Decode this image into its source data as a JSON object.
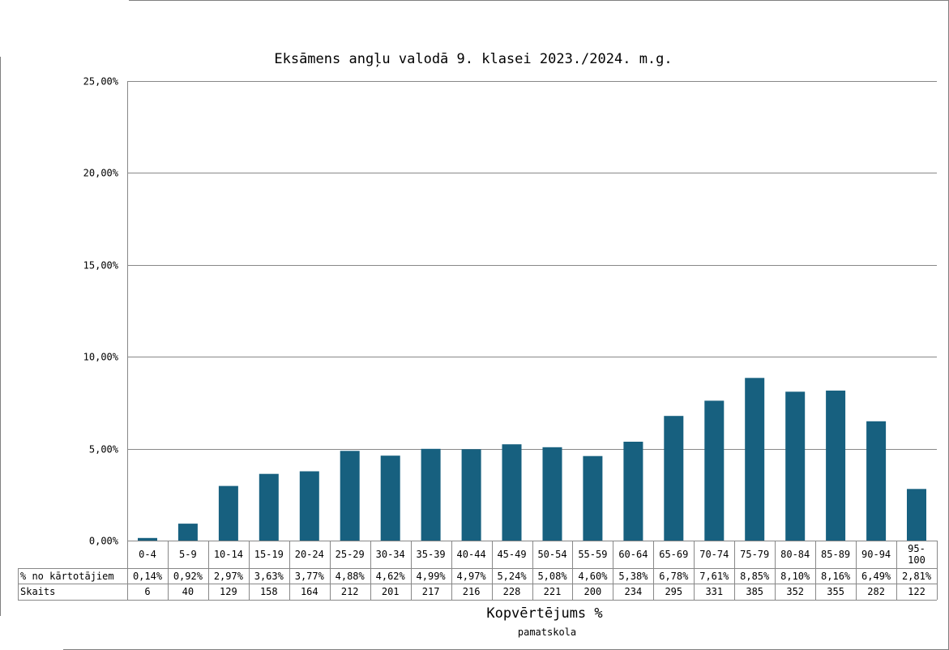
{
  "chart_data": {
    "type": "bar",
    "title": "Eksāmens angļu valodā 9. klasei 2023./2024. m.g.",
    "xlabel": "Kopvērtējums %",
    "subtitle": "pamatskola",
    "ylim": [
      0,
      25
    ],
    "yticks": [
      0,
      5,
      10,
      15,
      20,
      25
    ],
    "ytick_labels": [
      "0,00%",
      "5,00%",
      "10,00%",
      "15,00%",
      "20,00%",
      "25,00%"
    ],
    "grid": true,
    "bar_color": "#17607f",
    "categories": [
      "0-4",
      "5-9",
      "10-14",
      "15-19",
      "20-24",
      "25-29",
      "30-34",
      "35-39",
      "40-44",
      "45-49",
      "50-54",
      "55-59",
      "60-64",
      "65-69",
      "70-74",
      "75-79",
      "80-84",
      "85-89",
      "90-94",
      "95-100"
    ],
    "category_lines": [
      [
        "0-4"
      ],
      [
        "5-9"
      ],
      [
        "10-14"
      ],
      [
        "15-19"
      ],
      [
        "20-24"
      ],
      [
        "25-29"
      ],
      [
        "30-34"
      ],
      [
        "35-39"
      ],
      [
        "40-44"
      ],
      [
        "45-49"
      ],
      [
        "50-54"
      ],
      [
        "55-59"
      ],
      [
        "60-64"
      ],
      [
        "65-69"
      ],
      [
        "70-74"
      ],
      [
        "75-79"
      ],
      [
        "80-84"
      ],
      [
        "85-89"
      ],
      [
        "90-94"
      ],
      [
        "95-",
        "100"
      ]
    ],
    "series": [
      {
        "name": "% no kārtotājiem",
        "values": [
          0.14,
          0.92,
          2.97,
          3.63,
          3.77,
          4.88,
          4.62,
          4.99,
          4.97,
          5.24,
          5.08,
          4.6,
          5.38,
          6.78,
          7.61,
          8.85,
          8.1,
          8.16,
          6.49,
          2.81
        ],
        "labels": [
          "0,14%",
          "0,92%",
          "2,97%",
          "3,63%",
          "3,77%",
          "4,88%",
          "4,62%",
          "4,99%",
          "4,97%",
          "5,24%",
          "5,08%",
          "4,60%",
          "5,38%",
          "6,78%",
          "7,61%",
          "8,85%",
          "8,10%",
          "8,16%",
          "6,49%",
          "2,81%"
        ]
      }
    ],
    "table_rows": [
      {
        "label": "% no kārtotājiem",
        "cells": [
          "0,14%",
          "0,92%",
          "2,97%",
          "3,63%",
          "3,77%",
          "4,88%",
          "4,62%",
          "4,99%",
          "4,97%",
          "5,24%",
          "5,08%",
          "4,60%",
          "5,38%",
          "6,78%",
          "7,61%",
          "8,85%",
          "8,10%",
          "8,16%",
          "6,49%",
          "2,81%"
        ]
      },
      {
        "label": "Skaits",
        "cells": [
          "6",
          "40",
          "129",
          "158",
          "164",
          "212",
          "201",
          "217",
          "216",
          "228",
          "221",
          "200",
          "234",
          "295",
          "331",
          "385",
          "352",
          "355",
          "282",
          "122"
        ]
      }
    ]
  }
}
